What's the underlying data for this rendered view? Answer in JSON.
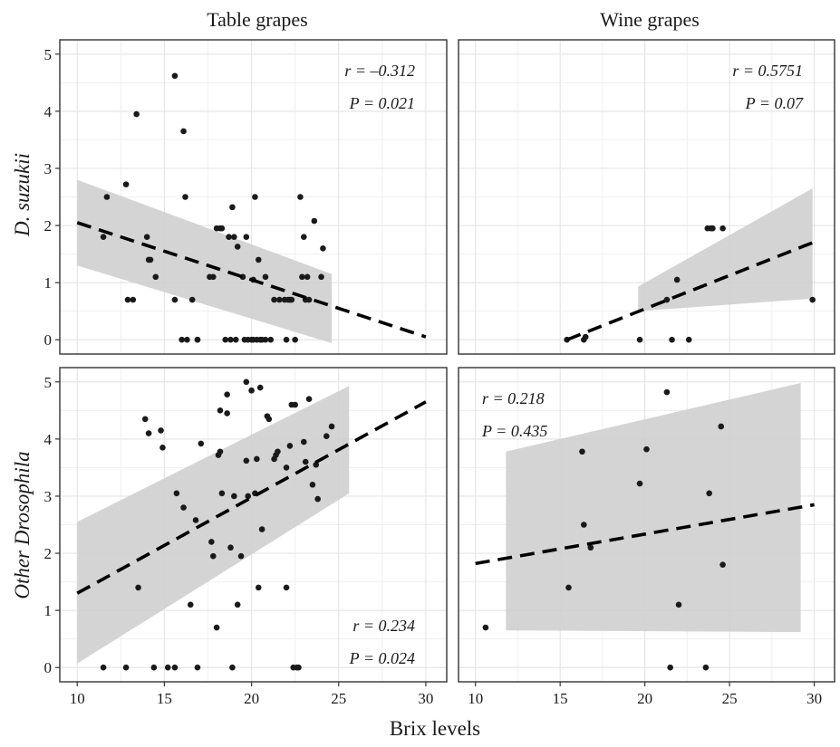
{
  "figure": {
    "xlabel": "Brix levels",
    "column_titles": [
      "Table grapes",
      "Wine grapes"
    ],
    "row_titles": [
      "D. suzukii",
      "Other Drosophila"
    ]
  },
  "colors": {
    "point": "#1a1a1a",
    "band": "#cfcfcf",
    "grid": "#e6e6e6",
    "line": "#000000",
    "frame": "#333333"
  },
  "chart_data": [
    {
      "type": "scatter",
      "panel": "Table grapes / D. suzukii",
      "xlim": [
        9,
        31.2
      ],
      "ylim": [
        -0.25,
        5.25
      ],
      "x_ticks": [
        10,
        15,
        20,
        25,
        30
      ],
      "y_ticks": [
        0,
        1,
        2,
        3,
        4,
        5
      ],
      "grid": true,
      "x": [
        11.5,
        11.7,
        12.8,
        12.9,
        13.2,
        13.4,
        14.0,
        14.1,
        14.2,
        14.5,
        15.6,
        15.6,
        16.0,
        16.1,
        16.2,
        16.3,
        16.6,
        16.9,
        16.9,
        17.6,
        17.8,
        18.0,
        18.2,
        18.3,
        18.5,
        18.7,
        18.8,
        18.9,
        19.0,
        19.1,
        19.2,
        19.5,
        19.6,
        19.7,
        19.8,
        20.0,
        20.1,
        20.1,
        20.2,
        20.3,
        20.4,
        20.5,
        20.6,
        20.8,
        20.8,
        21.1,
        21.3,
        21.6,
        21.9,
        22.0,
        22.1,
        22.2,
        22.3,
        22.5,
        22.8,
        22.9,
        23.0,
        23.1,
        23.2,
        23.3,
        23.6,
        24.0,
        24.1
      ],
      "y": [
        1.8,
        2.5,
        2.72,
        0.7,
        0.7,
        3.95,
        1.8,
        1.4,
        1.4,
        1.1,
        4.62,
        0.7,
        0,
        3.65,
        2.5,
        0,
        0.7,
        0,
        0,
        1.1,
        1.1,
        1.95,
        1.95,
        1.95,
        0,
        1.8,
        0,
        2.32,
        1.8,
        0,
        1.63,
        1.1,
        0,
        1.8,
        0,
        0,
        0,
        1.05,
        2.5,
        0,
        1.4,
        0,
        0,
        1.1,
        0,
        0,
        0.7,
        0.7,
        0.7,
        0,
        0.7,
        0.7,
        0.7,
        0,
        2.5,
        1.1,
        1.8,
        0.7,
        1.1,
        0.7,
        2.08,
        1.1,
        1.6
      ],
      "trend_x": [
        10,
        30
      ],
      "trend_y": [
        2.05,
        0.05
      ],
      "band_x": [
        10,
        24.6
      ],
      "band_lower": [
        1.3,
        -0.06
      ],
      "band_upper": [
        2.8,
        1.15
      ],
      "annotation": {
        "line1": "r = –0.312",
        "line2": "P = 0.021",
        "position": "top-right"
      }
    },
    {
      "type": "scatter",
      "panel": "Wine grapes / D. suzukii",
      "xlim": [
        9,
        31.2
      ],
      "ylim": [
        -0.25,
        5.25
      ],
      "x_ticks": [
        10,
        15,
        20,
        25,
        30
      ],
      "y_ticks": [
        0,
        1,
        2,
        3,
        4,
        5
      ],
      "grid": true,
      "x": [
        15.4,
        16.4,
        16.5,
        19.7,
        21.3,
        21.6,
        21.9,
        22.6,
        23.7,
        23.9,
        24.0,
        24.6,
        29.9
      ],
      "y": [
        0,
        0,
        0.05,
        0,
        0.7,
        0,
        1.05,
        0,
        1.95,
        1.95,
        1.95,
        1.95,
        0.7
      ],
      "trend_x": [
        15.4,
        29.9
      ],
      "trend_y": [
        0.0,
        1.7
      ],
      "band_x": [
        19.6,
        29.9
      ],
      "band_lower": [
        0.5,
        0.72
      ],
      "band_upper": [
        0.93,
        2.65
      ],
      "annotation": {
        "line1": "r = 0.5751",
        "line2": "P = 0.07",
        "position": "top-right"
      }
    },
    {
      "type": "scatter",
      "panel": "Table grapes / Other Drosophila",
      "xlim": [
        9,
        31.2
      ],
      "ylim": [
        -0.25,
        5.25
      ],
      "x_ticks": [
        10,
        15,
        20,
        25,
        30
      ],
      "y_ticks": [
        0,
        1,
        2,
        3,
        4,
        5
      ],
      "grid": true,
      "x": [
        11.5,
        12.8,
        13.5,
        13.9,
        14.1,
        14.4,
        14.8,
        14.9,
        15.2,
        15.6,
        15.7,
        16.1,
        16.5,
        16.8,
        16.9,
        17.1,
        17.7,
        17.8,
        18.0,
        18.1,
        18.2,
        18.2,
        18.3,
        18.6,
        18.6,
        18.8,
        18.9,
        19.0,
        19.2,
        19.4,
        19.7,
        19.7,
        19.8,
        20.0,
        20.2,
        20.3,
        20.4,
        20.5,
        20.6,
        20.9,
        21.0,
        21.3,
        21.4,
        21.5,
        22.0,
        22.0,
        22.2,
        22.3,
        22.4,
        22.5,
        22.6,
        22.7,
        23.0,
        23.1,
        23.3,
        23.5,
        23.7,
        23.8,
        24.3,
        24.6
      ],
      "y": [
        0,
        0,
        1.4,
        4.35,
        4.1,
        0,
        4.15,
        3.85,
        0,
        0,
        3.05,
        2.8,
        1.1,
        2.58,
        0,
        3.92,
        2.2,
        1.95,
        0.7,
        3.72,
        3.78,
        4.5,
        3.05,
        4.45,
        4.78,
        2.1,
        0,
        3.0,
        1.1,
        1.95,
        5.0,
        3.62,
        3.0,
        4.85,
        3.05,
        3.65,
        1.4,
        4.9,
        2.42,
        4.4,
        4.35,
        3.65,
        3.72,
        3.78,
        3.5,
        1.4,
        3.88,
        4.6,
        0,
        4.6,
        0,
        0,
        3.95,
        3.6,
        4.7,
        3.2,
        3.55,
        2.95,
        4.05,
        4.22
      ],
      "trend_x": [
        10,
        30
      ],
      "trend_y": [
        1.3,
        4.65
      ],
      "band_x": [
        10,
        25.6
      ],
      "band_lower": [
        0.07,
        3.05
      ],
      "band_upper": [
        2.55,
        4.93
      ],
      "annotation": {
        "line1": "r = 0.234",
        "line2": "P = 0.024",
        "position": "bottom-right"
      }
    },
    {
      "type": "scatter",
      "panel": "Wine grapes / Other Drosophila",
      "xlim": [
        9,
        31.2
      ],
      "ylim": [
        -0.25,
        5.25
      ],
      "x_ticks": [
        10,
        15,
        20,
        25,
        30
      ],
      "y_ticks": [
        0,
        1,
        2,
        3,
        4,
        5
      ],
      "grid": true,
      "x": [
        10.6,
        15.5,
        16.3,
        16.4,
        16.8,
        19.7,
        20.1,
        21.3,
        21.5,
        22.0,
        23.6,
        23.8,
        24.5,
        24.6
      ],
      "y": [
        0.7,
        1.4,
        3.78,
        2.5,
        2.1,
        3.22,
        3.82,
        4.82,
        0,
        1.1,
        0,
        3.05,
        4.22,
        1.8
      ],
      "trend_x": [
        10,
        30
      ],
      "trend_y": [
        1.82,
        2.85
      ],
      "band_x": [
        11.8,
        29.2
      ],
      "band_lower": [
        0.65,
        0.62
      ],
      "band_upper": [
        3.78,
        4.98
      ],
      "annotation": {
        "line1": "r = 0.218",
        "line2": "P = 0.435",
        "position": "top-left"
      }
    }
  ]
}
